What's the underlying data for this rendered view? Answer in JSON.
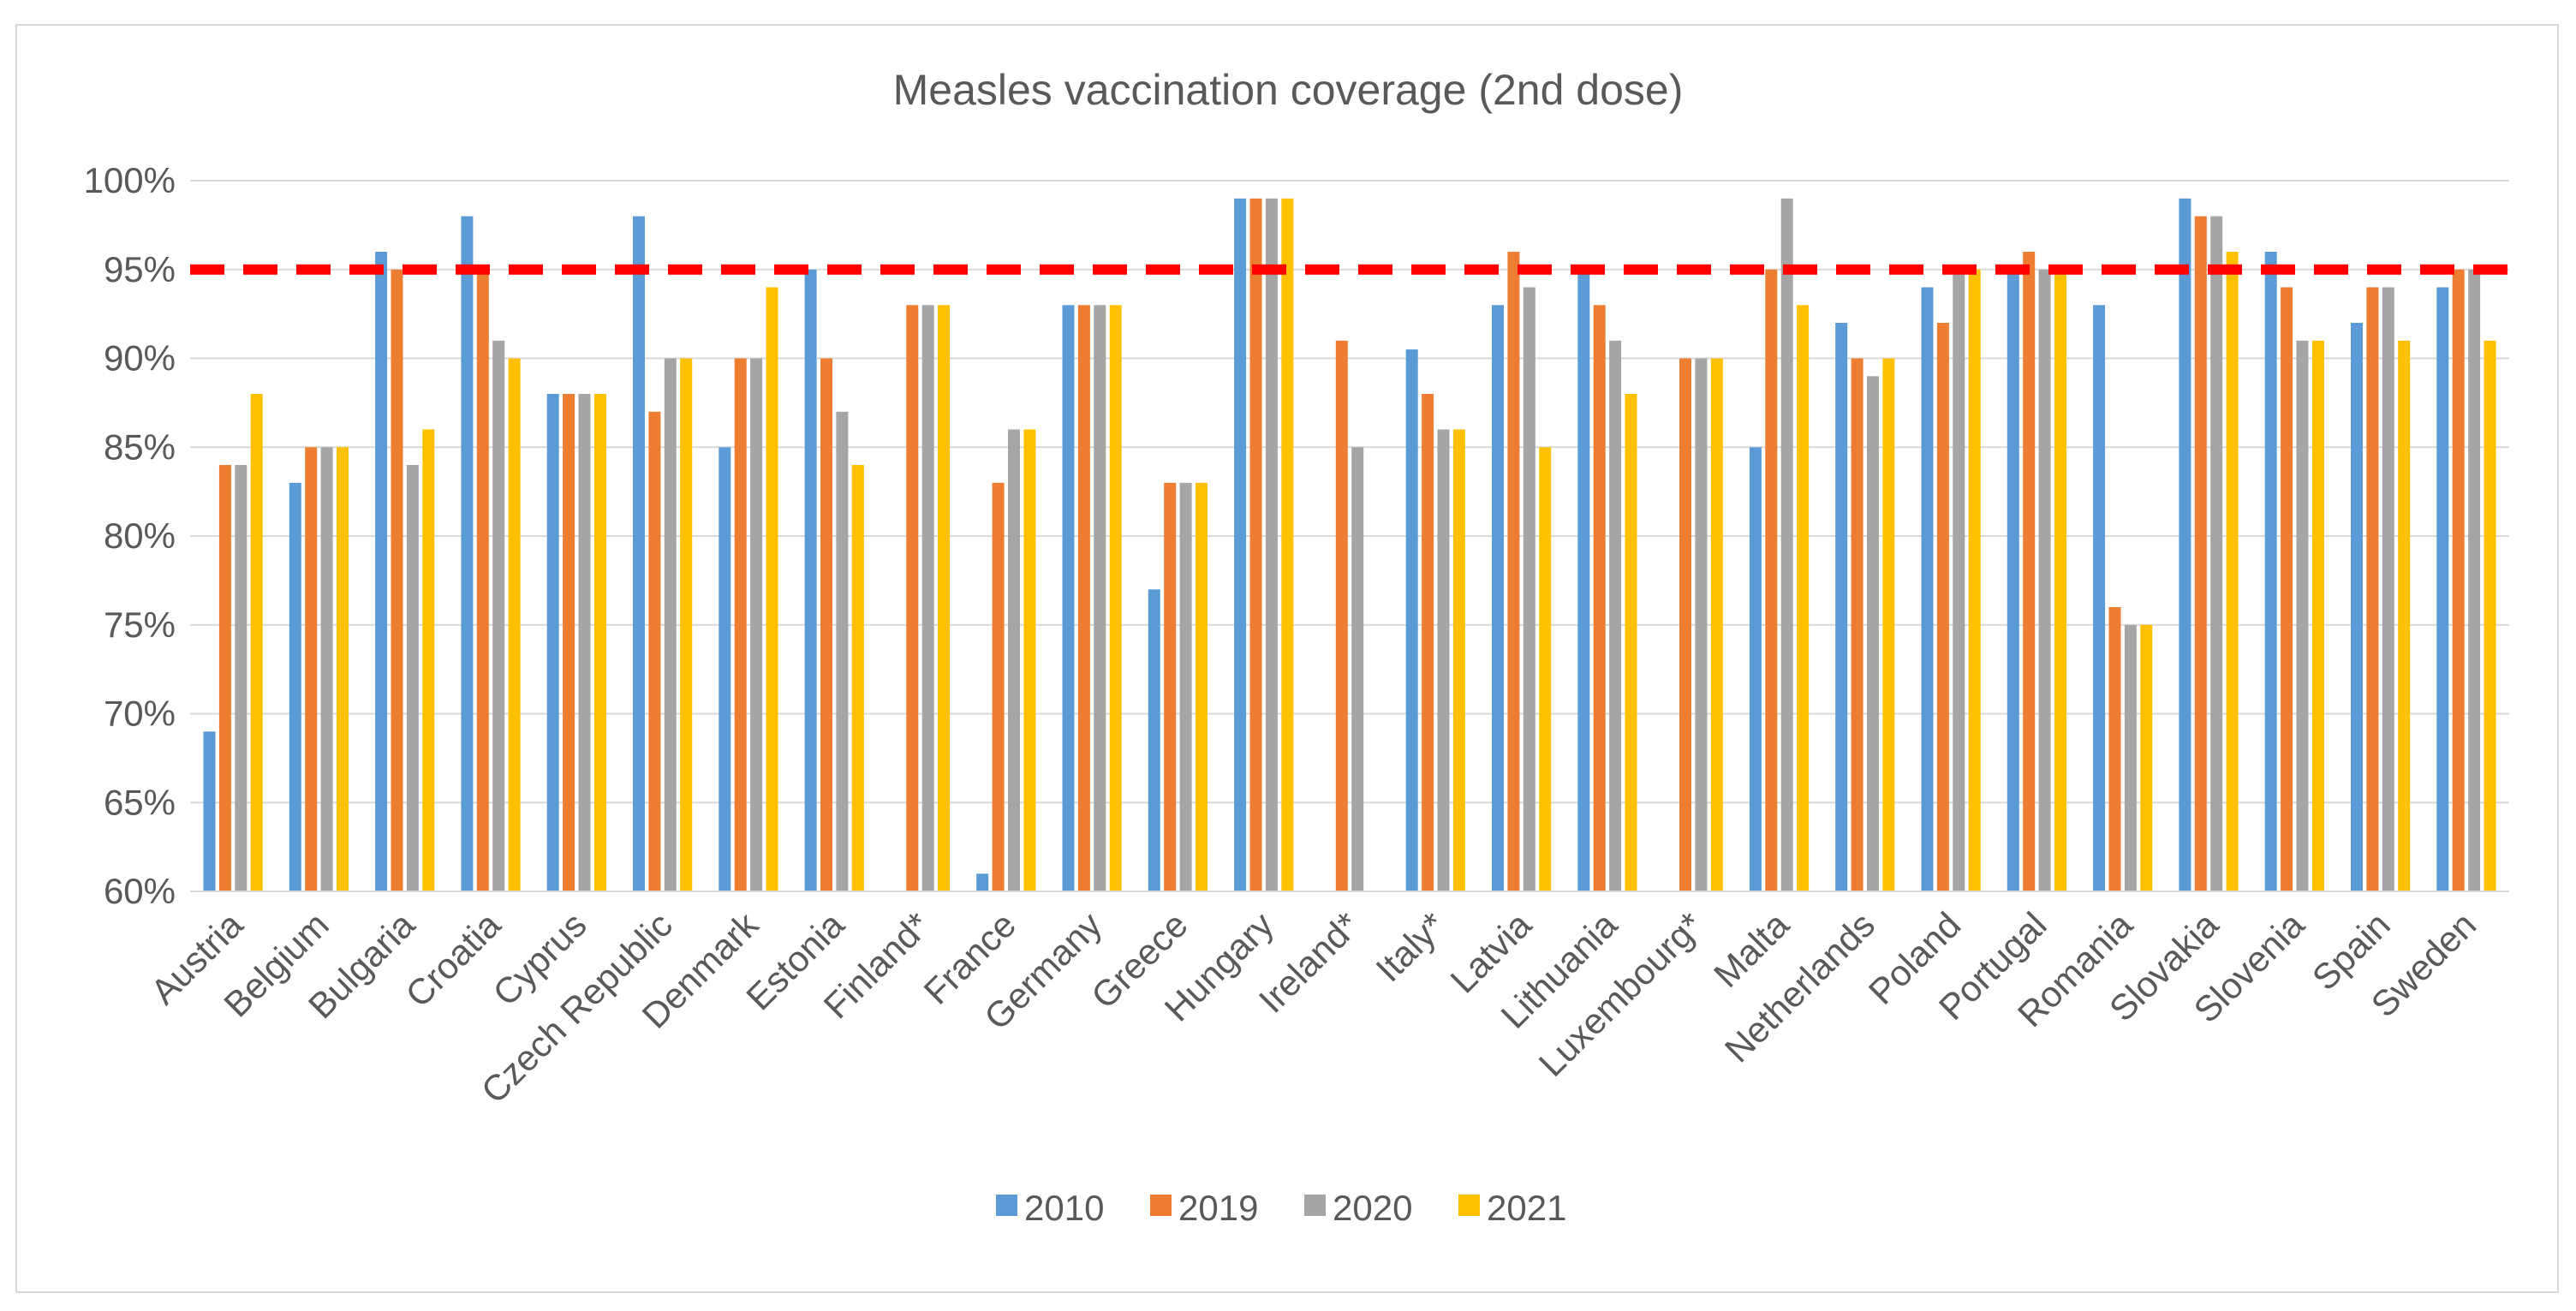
{
  "chart_data": {
    "type": "bar",
    "title": "Measles vaccination coverage (2nd dose)",
    "xlabel": "",
    "ylabel": "",
    "ylim": [
      60,
      100
    ],
    "yticks": [
      60,
      65,
      70,
      75,
      80,
      85,
      90,
      95,
      100
    ],
    "ytick_labels": [
      "60%",
      "65%",
      "70%",
      "75%",
      "80%",
      "85%",
      "90%",
      "95%",
      "100%"
    ],
    "grid": true,
    "legend_position": "bottom",
    "reference_line": {
      "value": 95,
      "color": "#ff0000",
      "style": "dashed"
    },
    "categories": [
      "Austria",
      "Belgium",
      "Bulgaria",
      "Croatia",
      "Cyprus",
      "Czech Republic",
      "Denmark",
      "Estonia",
      "Finland*",
      "France",
      "Germany",
      "Greece",
      "Hungary",
      "Ireland*",
      "Italy*",
      "Latvia",
      "Lithuania",
      "Luxembourg*",
      "Malta",
      "Netherlands",
      "Poland",
      "Portugal",
      "Romania",
      "Slovakia",
      "Slovenia",
      "Spain",
      "Sweden"
    ],
    "series": [
      {
        "name": "2010",
        "color": "#5b9bd5",
        "values": [
          69,
          83,
          96,
          98,
          88,
          98,
          85,
          95,
          null,
          61,
          93,
          77,
          99,
          null,
          90.5,
          93,
          95,
          null,
          85,
          92,
          94,
          95,
          93,
          99,
          96,
          92,
          94
        ]
      },
      {
        "name": "2019",
        "color": "#ed7d31",
        "values": [
          84,
          85,
          95,
          95,
          88,
          87,
          90,
          90,
          93,
          83,
          93,
          83,
          99,
          91,
          88,
          96,
          93,
          90,
          95,
          90,
          92,
          96,
          76,
          98,
          94,
          94,
          95
        ]
      },
      {
        "name": "2020",
        "color": "#a5a5a5",
        "values": [
          84,
          85,
          84,
          91,
          88,
          90,
          90,
          87,
          93,
          86,
          93,
          83,
          99,
          85,
          86,
          94,
          91,
          90,
          99,
          89,
          95,
          95,
          75,
          98,
          91,
          94,
          95
        ]
      },
      {
        "name": "2021",
        "color": "#ffc000",
        "values": [
          88,
          85,
          86,
          90,
          88,
          90,
          94,
          84,
          93,
          86,
          93,
          83,
          99,
          null,
          86,
          85,
          88,
          90,
          93,
          90,
          95,
          95,
          75,
          96,
          91,
          91,
          91
        ]
      }
    ]
  }
}
